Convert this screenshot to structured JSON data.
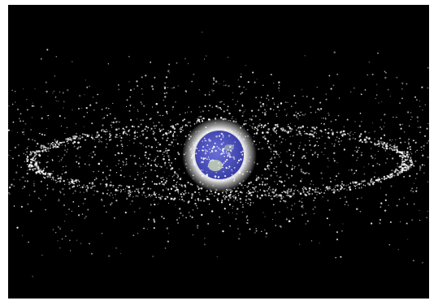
{
  "scene": {
    "subject": "space-debris-around-earth",
    "colors": {
      "background": "#000000",
      "frame": "#ffffff",
      "debris": "#ffffff",
      "earth_ocean": "#4a4fc0",
      "earth_land": "#c8d4b4",
      "halo": "#f4f4f4"
    }
  }
}
